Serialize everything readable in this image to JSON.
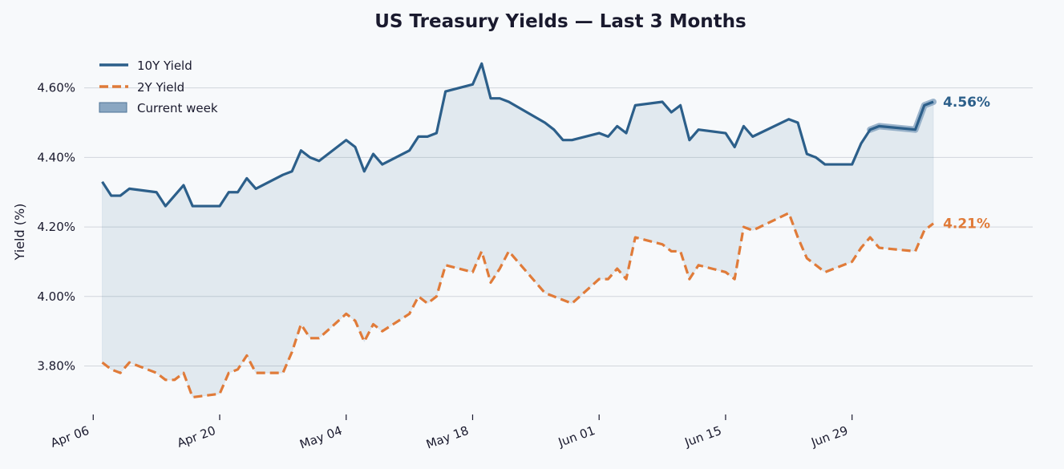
{
  "chart_data": {
    "type": "line",
    "title": "US Treasury Yields — Last 3 Months",
    "xlabel": "",
    "ylabel": "Yield (%)",
    "xlim": [
      "2026-04-05",
      "2026-07-19"
    ],
    "ylim": [
      3.665,
      4.71
    ],
    "y_ticks": [
      3.8,
      4.0,
      4.2,
      4.4,
      4.6
    ],
    "y_tick_labels": [
      "3.80%",
      "4.00%",
      "4.20%",
      "4.40%",
      "4.60%"
    ],
    "x_ticks": [
      "2026-04-06",
      "2026-04-20",
      "2026-05-04",
      "2026-05-18",
      "2026-06-01",
      "2026-06-15",
      "2026-06-29"
    ],
    "x_tick_labels": [
      "Apr 06",
      "Apr 20",
      "May 04",
      "May 18",
      "Jun 01",
      "Jun 15",
      "Jun 29"
    ],
    "grid": "horizontal",
    "legend_position": "top-left",
    "legend": [
      "10Y Yield",
      "2Y Yield",
      "Current week"
    ],
    "shaded_band": "between 10Y and 2Y",
    "highlight": {
      "label": "Current week",
      "from": "2026-07-01",
      "to": "2026-07-10",
      "series": "10Y Yield"
    },
    "dates": [
      "2026-04-07",
      "2026-04-08",
      "2026-04-09",
      "2026-04-10",
      "2026-04-13",
      "2026-04-14",
      "2026-04-15",
      "2026-04-16",
      "2026-04-17",
      "2026-04-20",
      "2026-04-21",
      "2026-04-22",
      "2026-04-23",
      "2026-04-24",
      "2026-04-27",
      "2026-04-28",
      "2026-04-29",
      "2026-04-30",
      "2026-05-01",
      "2026-05-04",
      "2026-05-05",
      "2026-05-06",
      "2026-05-07",
      "2026-05-08",
      "2026-05-11",
      "2026-05-12",
      "2026-05-13",
      "2026-05-14",
      "2026-05-15",
      "2026-05-18",
      "2026-05-19",
      "2026-05-20",
      "2026-05-21",
      "2026-05-22",
      "2026-05-26",
      "2026-05-27",
      "2026-05-28",
      "2026-05-29",
      "2026-06-01",
      "2026-06-02",
      "2026-06-03",
      "2026-06-04",
      "2026-06-05",
      "2026-06-08",
      "2026-06-09",
      "2026-06-10",
      "2026-06-11",
      "2026-06-12",
      "2026-06-15",
      "2026-06-16",
      "2026-06-17",
      "2026-06-18",
      "2026-06-22",
      "2026-06-23",
      "2026-06-24",
      "2026-06-25",
      "2026-06-26",
      "2026-06-29",
      "2026-06-30",
      "2026-07-01",
      "2026-07-02",
      "2026-07-06",
      "2026-07-07",
      "2026-07-08"
    ],
    "series": [
      {
        "name": "10Y Yield",
        "color": "#2c5f8a",
        "style": "solid",
        "end_label": "4.56%",
        "values": [
          4.33,
          4.29,
          4.29,
          4.31,
          4.3,
          4.26,
          4.29,
          4.32,
          4.26,
          4.26,
          4.3,
          4.3,
          4.34,
          4.31,
          4.35,
          4.36,
          4.42,
          4.4,
          4.39,
          4.45,
          4.43,
          4.36,
          4.41,
          4.38,
          4.42,
          4.46,
          4.46,
          4.47,
          4.59,
          4.61,
          4.67,
          4.57,
          4.57,
          4.56,
          4.5,
          4.48,
          4.45,
          4.45,
          4.47,
          4.46,
          4.49,
          4.47,
          4.55,
          4.56,
          4.53,
          4.55,
          4.45,
          4.48,
          4.47,
          4.43,
          4.49,
          4.46,
          4.51,
          4.5,
          4.41,
          4.4,
          4.38,
          4.38,
          4.44,
          4.48,
          4.49,
          4.48,
          4.55,
          4.56
        ]
      },
      {
        "name": "2Y Yield",
        "color": "#e07b39",
        "style": "dashed",
        "end_label": "4.21%",
        "values": [
          3.81,
          3.79,
          3.78,
          3.81,
          3.78,
          3.76,
          3.76,
          3.78,
          3.71,
          3.72,
          3.78,
          3.79,
          3.83,
          3.78,
          3.78,
          3.84,
          3.92,
          3.88,
          3.88,
          3.95,
          3.93,
          3.87,
          3.92,
          3.9,
          3.95,
          4.0,
          3.98,
          4.0,
          4.09,
          4.07,
          4.13,
          4.04,
          4.08,
          4.13,
          4.01,
          4.0,
          3.99,
          3.98,
          4.05,
          4.05,
          4.08,
          4.05,
          4.17,
          4.15,
          4.13,
          4.13,
          4.05,
          4.09,
          4.07,
          4.05,
          4.2,
          4.19,
          4.24,
          4.17,
          4.11,
          4.09,
          4.07,
          4.1,
          4.14,
          4.17,
          4.14,
          4.13,
          4.19,
          4.21
        ]
      }
    ]
  }
}
